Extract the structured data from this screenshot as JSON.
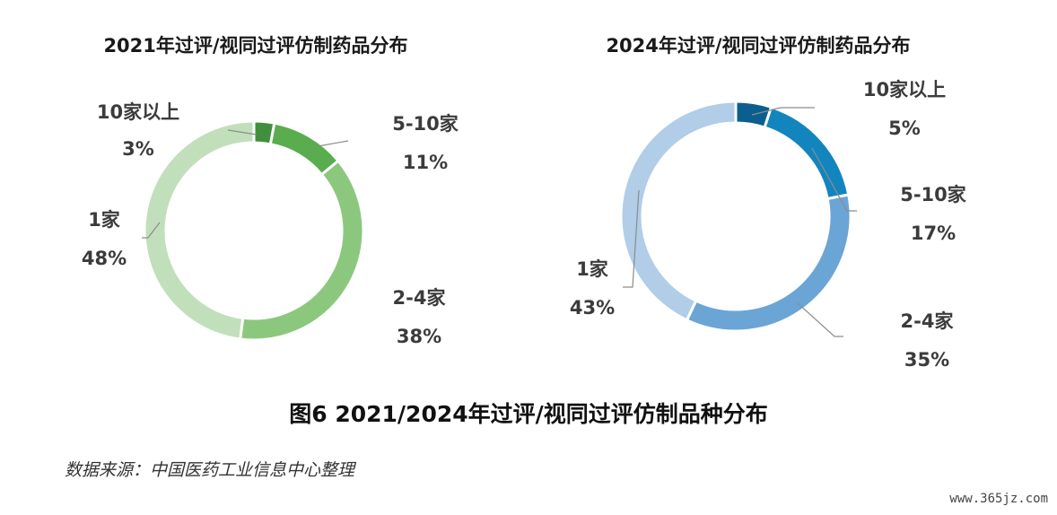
{
  "chart_data": [
    {
      "type": "pie",
      "title": "2021年过评/视同过评仿制药品分布",
      "slices": [
        {
          "name": "10家以上",
          "value": 3,
          "label": "3%",
          "color": "#3f8f3c"
        },
        {
          "name": "5-10家",
          "value": 11,
          "label": "11%",
          "color": "#5aad4e"
        },
        {
          "name": "2-4家",
          "value": 38,
          "label": "38%",
          "color": "#8cc77e"
        },
        {
          "name": "1家",
          "value": 48,
          "label": "48%",
          "color": "#c2dfbb"
        }
      ]
    },
    {
      "type": "pie",
      "title": "2024年过评/视同过评仿制药品分布",
      "slices": [
        {
          "name": "10家以上",
          "value": 5,
          "label": "5%",
          "color": "#0b5f8e"
        },
        {
          "name": "5-10家",
          "value": 17,
          "label": "17%",
          "color": "#1385be"
        },
        {
          "name": "2-4家",
          "value": 35,
          "label": "35%",
          "color": "#6aa5d6"
        },
        {
          "name": "1家",
          "value": 43,
          "label": "43%",
          "color": "#b1cde8"
        }
      ]
    }
  ],
  "figure": {
    "caption": "图6 2021/2024年过评/视同过评仿制品种分布",
    "source": "数据来源：中国医药工业信息中心整理"
  },
  "watermark": "www.365jz.com"
}
